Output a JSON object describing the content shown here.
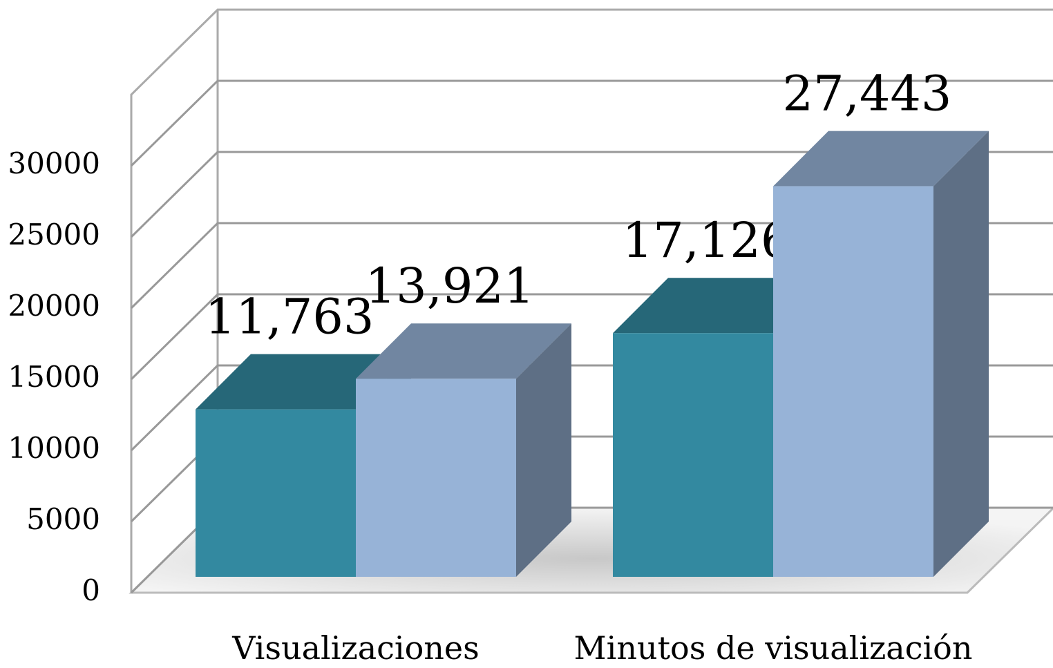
{
  "chart_data": {
    "type": "bar3d",
    "categories": [
      "Visualizaciones",
      "Minutos de visualización"
    ],
    "series": [
      {
        "color": "#3389a0",
        "values": [
          11763,
          17126
        ],
        "value_labels": [
          "11,763",
          "17,126"
        ]
      },
      {
        "color": "#97b3d7",
        "values": [
          13921,
          27443
        ],
        "value_labels": [
          "13,921",
          "27,443"
        ]
      }
    ],
    "ylim": [
      0,
      35000
    ],
    "yticks": [
      0,
      5000,
      10000,
      15000,
      20000,
      25000,
      30000
    ],
    "grid": true
  }
}
